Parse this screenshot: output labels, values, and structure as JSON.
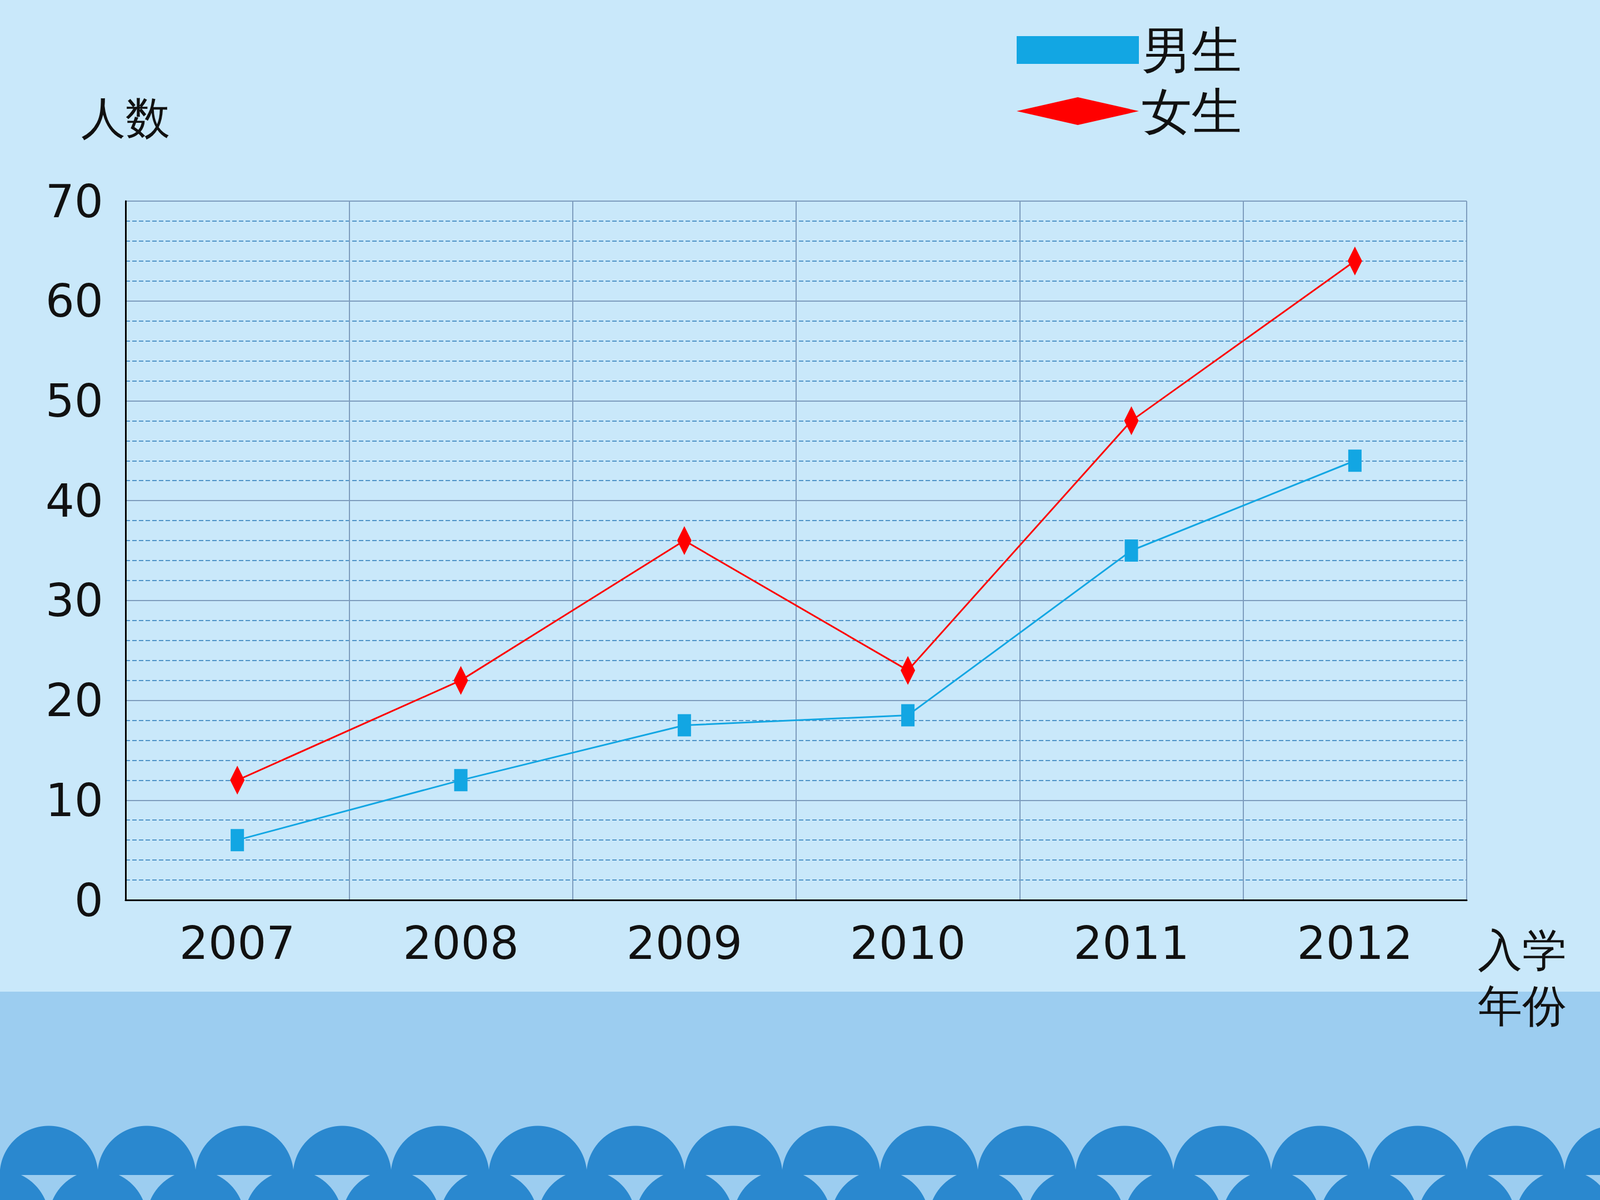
{
  "chart_data": {
    "type": "line",
    "categories": [
      "2007",
      "2008",
      "2009",
      "2010",
      "2011",
      "2012"
    ],
    "x_label": "入学年份",
    "y_label": "人数",
    "series": [
      {
        "name": "男生",
        "color": "#12a6e3",
        "marker": "rect",
        "values": [
          6,
          12,
          17.5,
          18.5,
          35,
          44
        ]
      },
      {
        "name": "女生",
        "color": "#ff0000",
        "marker": "diamond",
        "values": [
          12,
          22,
          36,
          23,
          48,
          64
        ]
      }
    ],
    "ylim": [
      0,
      70
    ],
    "yticks": [
      0,
      10,
      20,
      30,
      40,
      50,
      60,
      70
    ],
    "grid": true,
    "legend": "top-right"
  }
}
